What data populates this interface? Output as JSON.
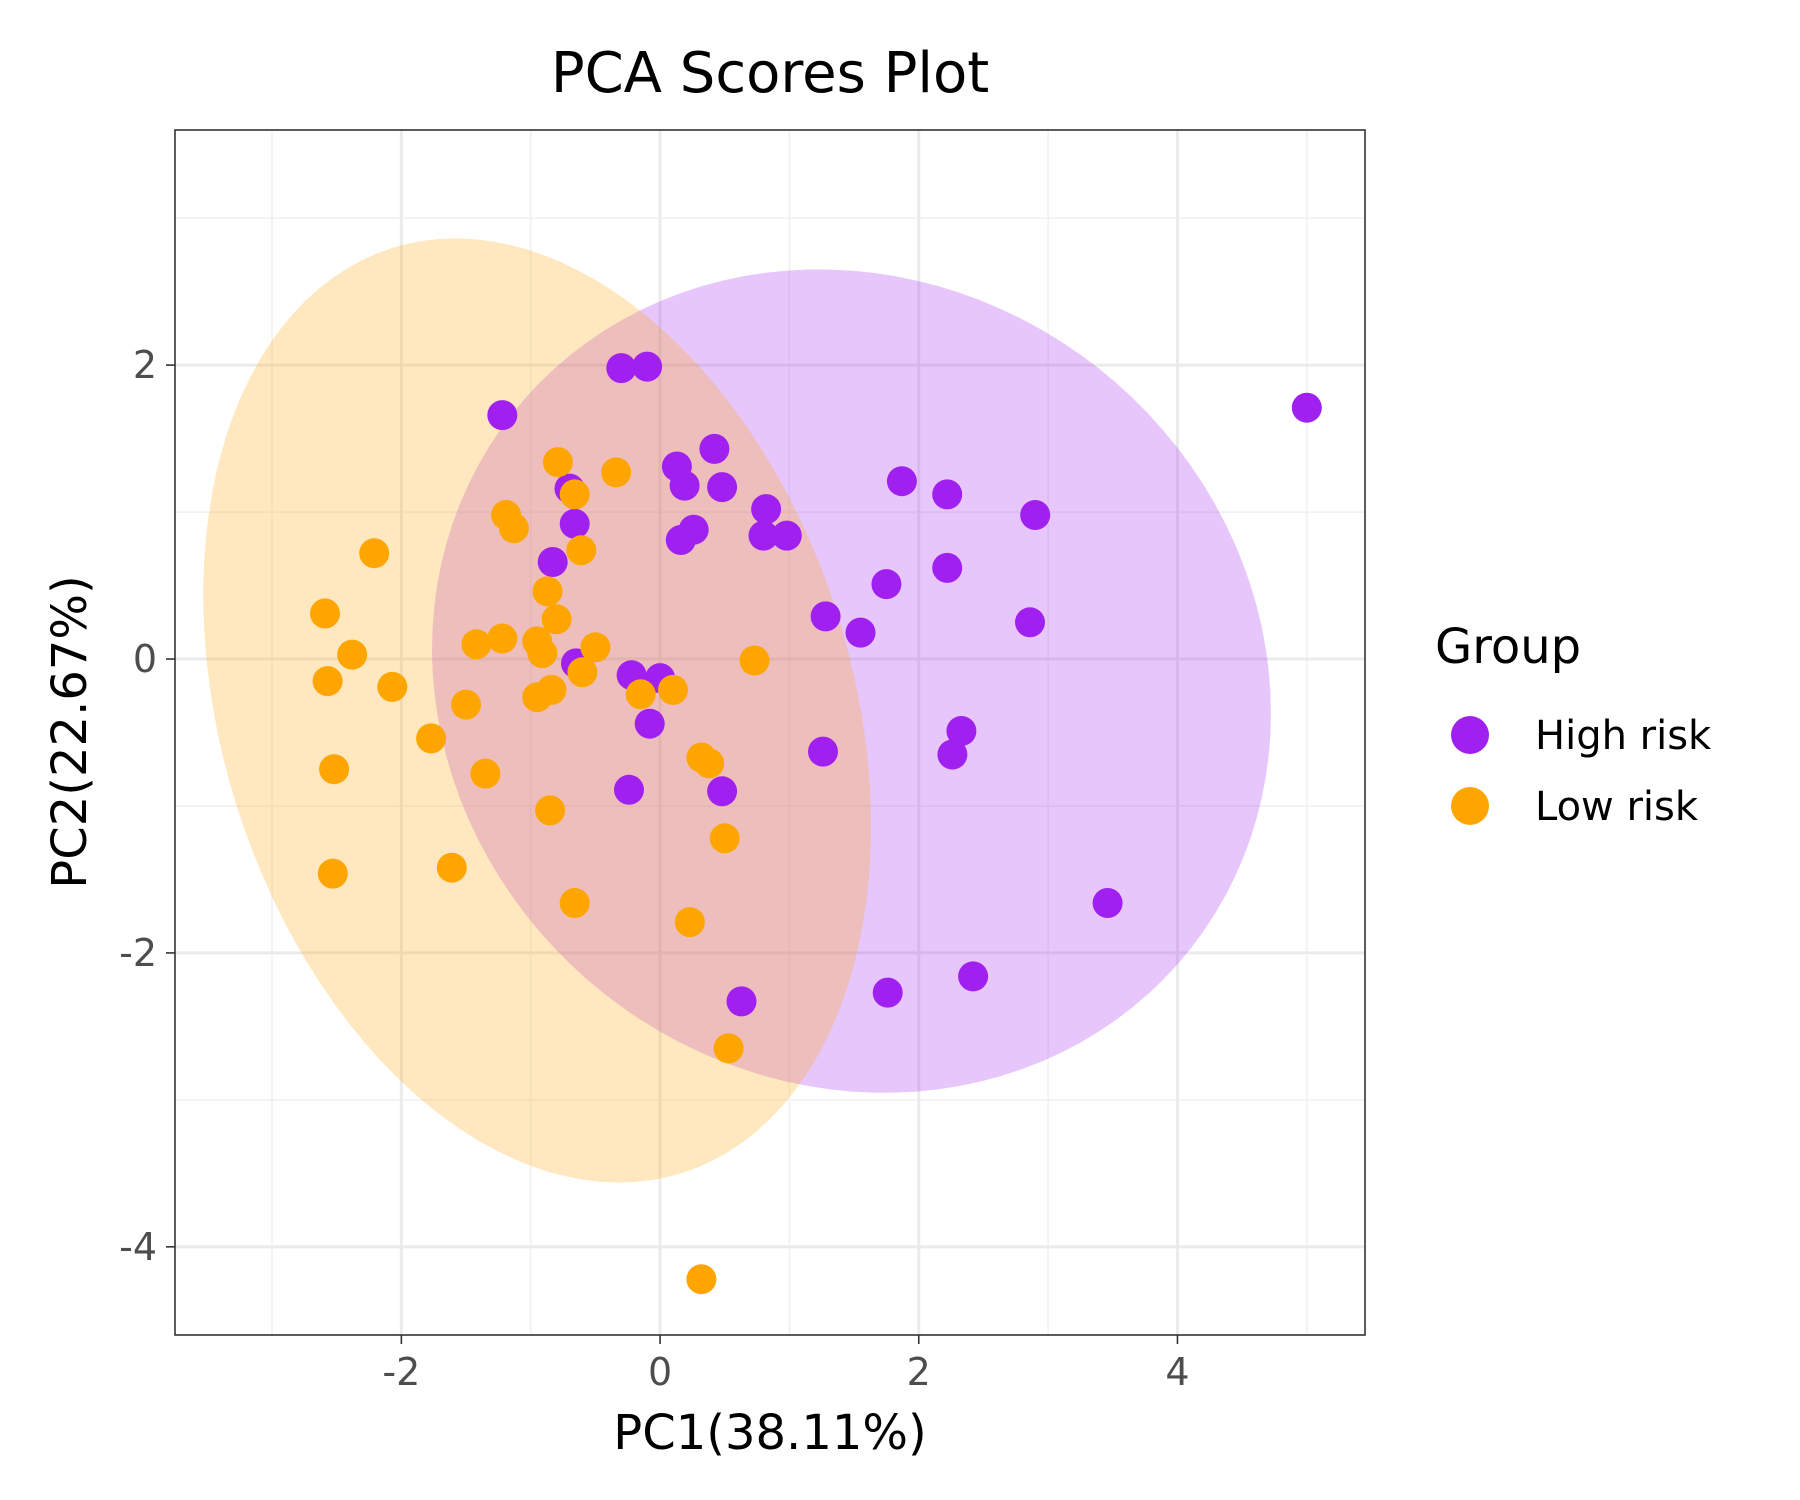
{
  "chart_data": {
    "type": "scatter",
    "title": "PCA Scores Plot",
    "xlabel": "PC1(38.11%)",
    "ylabel": "PC2(22.67%)",
    "xlim": [
      -3.75,
      5.45
    ],
    "ylim": [
      -4.6,
      3.6
    ],
    "xticks": [
      -2,
      0,
      2,
      4
    ],
    "yticks": [
      -4,
      -2,
      0,
      2
    ],
    "xtick_labels": [
      "-2",
      "0",
      "2",
      "4"
    ],
    "ytick_labels": [
      "-4",
      "-2",
      "0",
      "2"
    ],
    "grid": true,
    "legend_title": "Group",
    "legend_position": "right",
    "series": [
      {
        "name": "High risk",
        "color": "#A020F0",
        "ellipse_fill": "#E6C7F9",
        "ellipse": {
          "cx": 1.48,
          "cy": -0.15,
          "rx": 3.27,
          "ry": 2.77,
          "angle": -14
        },
        "points": [
          [
            -0.3,
            1.98
          ],
          [
            -0.1,
            1.99
          ],
          [
            -1.22,
            1.66
          ],
          [
            5.0,
            1.71
          ],
          [
            0.42,
            1.43
          ],
          [
            0.13,
            1.31
          ],
          [
            0.19,
            1.18
          ],
          [
            0.48,
            1.17
          ],
          [
            -0.7,
            1.16
          ],
          [
            1.87,
            1.21
          ],
          [
            2.22,
            1.12
          ],
          [
            2.9,
            0.98
          ],
          [
            0.82,
            1.02
          ],
          [
            -0.66,
            0.92
          ],
          [
            0.26,
            0.88
          ],
          [
            0.16,
            0.81
          ],
          [
            0.8,
            0.84
          ],
          [
            0.98,
            0.84
          ],
          [
            -0.83,
            0.66
          ],
          [
            1.75,
            0.51
          ],
          [
            2.22,
            0.62
          ],
          [
            1.28,
            0.29
          ],
          [
            1.55,
            0.18
          ],
          [
            2.86,
            0.25
          ],
          [
            -0.65,
            -0.03
          ],
          [
            -0.22,
            -0.11
          ],
          [
            0.0,
            -0.13
          ],
          [
            -0.08,
            -0.44
          ],
          [
            2.33,
            -0.49
          ],
          [
            1.26,
            -0.63
          ],
          [
            2.26,
            -0.65
          ],
          [
            -0.24,
            -0.89
          ],
          [
            0.48,
            -0.9
          ],
          [
            3.46,
            -1.66
          ],
          [
            2.42,
            -2.16
          ],
          [
            1.76,
            -2.27
          ],
          [
            0.63,
            -2.33
          ]
        ]
      },
      {
        "name": "Low risk",
        "color": "#FFA500",
        "ellipse_fill": "#FFE8C2",
        "ellipse": {
          "cx": -0.95,
          "cy": -0.35,
          "rx": 3.35,
          "ry": 2.4,
          "angle": -66
        },
        "points": [
          [
            -0.79,
            1.34
          ],
          [
            -0.34,
            1.27
          ],
          [
            -1.19,
            0.98
          ],
          [
            -1.13,
            0.89
          ],
          [
            -0.66,
            1.12
          ],
          [
            -2.21,
            0.72
          ],
          [
            -0.61,
            0.74
          ],
          [
            -2.59,
            0.31
          ],
          [
            -0.87,
            0.46
          ],
          [
            -0.8,
            0.27
          ],
          [
            -1.22,
            0.14
          ],
          [
            -1.42,
            0.1
          ],
          [
            -0.95,
            0.12
          ],
          [
            -0.5,
            0.08
          ],
          [
            -0.91,
            0.04
          ],
          [
            -2.38,
            0.03
          ],
          [
            0.73,
            -0.01
          ],
          [
            -0.6,
            -0.09
          ],
          [
            -2.57,
            -0.15
          ],
          [
            -2.07,
            -0.19
          ],
          [
            -0.84,
            -0.21
          ],
          [
            -0.95,
            -0.26
          ],
          [
            0.1,
            -0.21
          ],
          [
            -0.15,
            -0.24
          ],
          [
            -1.5,
            -0.31
          ],
          [
            -1.77,
            -0.54
          ],
          [
            0.32,
            -0.67
          ],
          [
            0.38,
            -0.71
          ],
          [
            -2.52,
            -0.75
          ],
          [
            -1.35,
            -0.78
          ],
          [
            -0.85,
            -1.03
          ],
          [
            0.5,
            -1.22
          ],
          [
            -2.53,
            -1.46
          ],
          [
            -1.61,
            -1.42
          ],
          [
            -0.66,
            -1.66
          ],
          [
            0.23,
            -1.79
          ],
          [
            0.53,
            -2.65
          ],
          [
            0.32,
            -4.22
          ]
        ]
      }
    ]
  }
}
